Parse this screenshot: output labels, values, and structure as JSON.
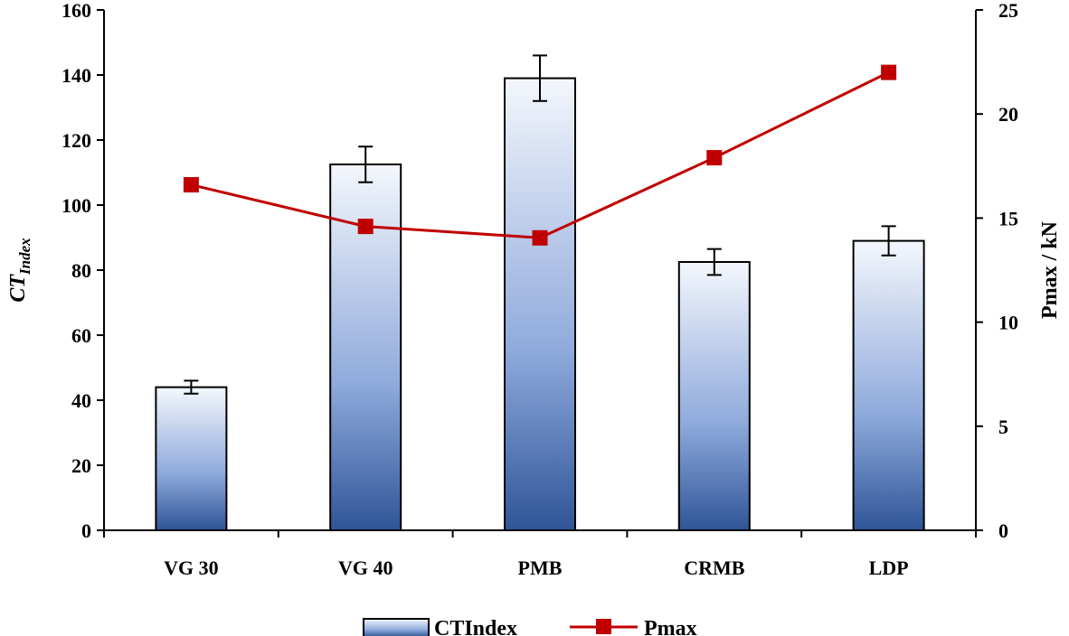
{
  "chart_data": {
    "type": "bar",
    "categories": [
      "VG 30",
      "VG 40",
      "PMB",
      "CRMB",
      "LDP"
    ],
    "series": [
      {
        "name": "CTIndex",
        "type": "bar",
        "axis": "left",
        "values": [
          44,
          112.5,
          139,
          82.5,
          89
        ],
        "error": [
          2,
          5.5,
          7,
          4,
          4.5
        ]
      },
      {
        "name": "Pmax",
        "type": "line",
        "axis": "right",
        "values": [
          16.6,
          14.6,
          14.05,
          17.9,
          22
        ],
        "color": "#c00000"
      }
    ],
    "y_left": {
      "label_main": "CT",
      "label_sub": "Index",
      "ylim": [
        0,
        160
      ],
      "ticks": [
        "0",
        "20",
        "40",
        "60",
        "80",
        "100",
        "120",
        "140",
        "160"
      ]
    },
    "y_right": {
      "label": "Pmax / kN",
      "ylim": [
        0,
        25
      ],
      "ticks": [
        "0",
        "5",
        "10",
        "15",
        "20",
        "25"
      ]
    },
    "legend": {
      "position": "bottom",
      "entries": [
        "CTIndex",
        "Pmax"
      ]
    },
    "colors": {
      "bar_top": "#f4f7fc",
      "bar_mid": "#8faadc",
      "bar_bottom": "#2f5597",
      "line": "#c00000",
      "axis": "#000000"
    },
    "grid": false
  }
}
